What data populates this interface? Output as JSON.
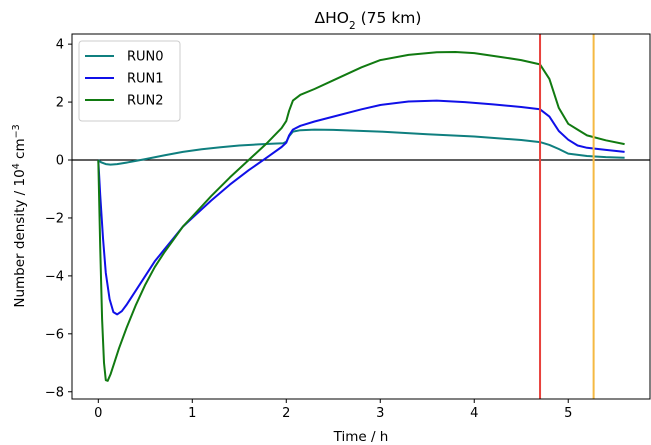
{
  "chart_data": {
    "type": "line",
    "title_prefix": "ΔHO",
    "title_sub": "2",
    "title_suffix": " (75 km)",
    "xlabel": "Time / h",
    "ylabel_main": "Number density / 10",
    "ylabel_exp1": "4",
    "ylabel_unit": " cm",
    "ylabel_exp2": "−3",
    "xlim": [
      -0.28,
      5.87
    ],
    "ylim": [
      -8.25,
      4.35
    ],
    "xticks": [
      0,
      1,
      2,
      3,
      4,
      5
    ],
    "xtick_labels": [
      "0",
      "1",
      "2",
      "3",
      "4",
      "5"
    ],
    "yticks": [
      -8,
      -6,
      -4,
      -2,
      0,
      2,
      4
    ],
    "ytick_labels": [
      "−8",
      "−6",
      "−4",
      "−2",
      "0",
      "2",
      "4"
    ],
    "grid": false,
    "legend_position": "top-left",
    "hlines": [
      {
        "y": 0,
        "color": "#000000"
      }
    ],
    "vlines": [
      {
        "x": 4.7,
        "color": "#e8413c"
      },
      {
        "x": 5.27,
        "color": "#f5b942"
      }
    ],
    "series": [
      {
        "name": "RUN0",
        "color": "#0f7f7f",
        "x": [
          0.0,
          0.03,
          0.08,
          0.13,
          0.2,
          0.3,
          0.4,
          0.5,
          0.7,
          0.9,
          1.1,
          1.3,
          1.5,
          1.7,
          1.9,
          1.97,
          2.0,
          2.03,
          2.07,
          2.15,
          2.3,
          2.5,
          3.0,
          3.5,
          4.0,
          4.5,
          4.7,
          4.8,
          4.9,
          5.0,
          5.2,
          5.4,
          5.6
        ],
        "y": [
          0.0,
          -0.08,
          -0.14,
          -0.16,
          -0.14,
          -0.09,
          -0.03,
          0.03,
          0.16,
          0.28,
          0.37,
          0.44,
          0.5,
          0.54,
          0.57,
          0.58,
          0.63,
          0.82,
          0.98,
          1.03,
          1.05,
          1.04,
          0.98,
          0.89,
          0.81,
          0.69,
          0.62,
          0.52,
          0.38,
          0.22,
          0.14,
          0.1,
          0.08
        ]
      },
      {
        "name": "RUN1",
        "color": "#1010e8",
        "x": [
          0.0,
          0.02,
          0.05,
          0.08,
          0.12,
          0.16,
          0.2,
          0.25,
          0.3,
          0.4,
          0.5,
          0.6,
          0.7,
          0.8,
          0.9,
          1.0,
          1.2,
          1.4,
          1.6,
          1.8,
          1.95,
          2.0,
          2.03,
          2.07,
          2.15,
          2.3,
          2.5,
          2.8,
          3.0,
          3.3,
          3.6,
          3.9,
          4.2,
          4.5,
          4.7,
          4.8,
          4.9,
          5.0,
          5.1,
          5.2,
          5.4,
          5.6
        ],
        "y": [
          0.0,
          -1.2,
          -2.7,
          -3.9,
          -4.8,
          -5.25,
          -5.33,
          -5.22,
          -5.0,
          -4.5,
          -4.0,
          -3.5,
          -3.1,
          -2.7,
          -2.3,
          -2.0,
          -1.4,
          -0.85,
          -0.35,
          0.1,
          0.45,
          0.6,
          0.85,
          1.05,
          1.18,
          1.33,
          1.5,
          1.75,
          1.9,
          2.02,
          2.05,
          2.0,
          1.92,
          1.83,
          1.75,
          1.5,
          1.0,
          0.7,
          0.5,
          0.42,
          0.35,
          0.28
        ]
      },
      {
        "name": "RUN2",
        "color": "#117a11",
        "x": [
          0.0,
          0.02,
          0.04,
          0.06,
          0.08,
          0.1,
          0.13,
          0.17,
          0.22,
          0.3,
          0.4,
          0.5,
          0.6,
          0.7,
          0.8,
          0.9,
          1.0,
          1.2,
          1.4,
          1.6,
          1.8,
          1.95,
          2.0,
          2.03,
          2.07,
          2.15,
          2.3,
          2.5,
          2.8,
          3.0,
          3.3,
          3.6,
          3.8,
          4.0,
          4.3,
          4.5,
          4.7,
          4.8,
          4.9,
          5.0,
          5.1,
          5.2,
          5.4,
          5.6
        ],
        "y": [
          0.0,
          -3.0,
          -5.5,
          -7.0,
          -7.6,
          -7.62,
          -7.4,
          -7.0,
          -6.5,
          -5.8,
          -5.0,
          -4.3,
          -3.7,
          -3.2,
          -2.75,
          -2.3,
          -1.95,
          -1.25,
          -0.6,
          0.0,
          0.6,
          1.1,
          1.35,
          1.7,
          2.05,
          2.25,
          2.45,
          2.75,
          3.2,
          3.45,
          3.63,
          3.72,
          3.73,
          3.69,
          3.55,
          3.45,
          3.3,
          2.8,
          1.8,
          1.25,
          1.05,
          0.85,
          0.68,
          0.55
        ]
      }
    ]
  }
}
